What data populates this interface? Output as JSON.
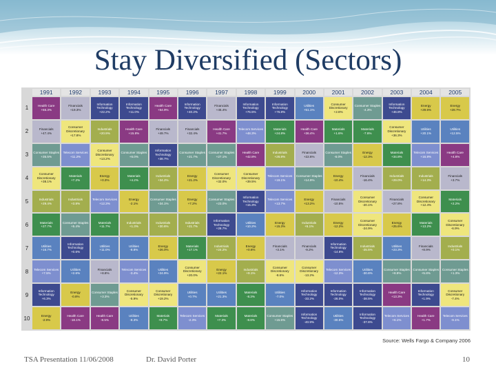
{
  "slide": {
    "title": "Stay Diversified (Sectors)",
    "source": "Source: Wells Fargo & Company 2006",
    "footer_left": "TSA Presentation  11/06/2008",
    "footer_center": "Dr. David Porter",
    "page_number": "10"
  },
  "colors": {
    "Information Technology": "#3d4a8f",
    "Financials": "#b9b8cc",
    "Health Care": "#8a3a83",
    "Energy": "#d8c94a",
    "Consumer Discretionary": "#efe67d",
    "Telecom Services": "#7e8fcf",
    "Utilities": "#5a82bf",
    "Materials": "#3e8f4e",
    "Industrials": "#a3ae4e",
    "Consumer Staples": "#6f9b92",
    "title": "#1f3c64",
    "header_text": "#1f3c6e"
  },
  "years": [
    "1991",
    "1992",
    "1993",
    "1994",
    "1995",
    "1996",
    "1997",
    "1998",
    "1999",
    "2000",
    "2001",
    "2002",
    "2003",
    "2004",
    "2005"
  ],
  "ranks": [
    "1",
    "2",
    "3",
    "4",
    "5",
    "6",
    "7",
    "8",
    "9",
    "10"
  ],
  "grid": [
    [
      [
        "Health Care",
        "+55.3%"
      ],
      [
        "Financials",
        "+19.3%"
      ],
      [
        "Information Technology",
        "+22.2%"
      ],
      [
        "Information Technology",
        "+11.0%"
      ],
      [
        "Health Care",
        "+54.9%"
      ],
      [
        "Information Technology",
        "+40.2%"
      ],
      [
        "Financials",
        "+45.4%"
      ],
      [
        "Information Technology",
        "+76.5%"
      ],
      [
        "Information Technology",
        "+76.8%"
      ],
      [
        "Utilities",
        "+51.1%"
      ],
      [
        "Consumer Discretionary",
        "+2.8%"
      ],
      [
        "Consumer Staples",
        "-4.3%"
      ],
      [
        "Information Technology",
        "+46.8%"
      ],
      [
        "Energy",
        "+29.6%"
      ],
      [
        "Energy",
        "+28.7%"
      ]
    ],
    [
      [
        "Financials",
        "+47.4%"
      ],
      [
        "Consumer Discretionary",
        "+17.8%"
      ],
      [
        "Industrials",
        "+20.9%"
      ],
      [
        "Health Care",
        "+15.8%"
      ],
      [
        "Financials",
        "+49.7%"
      ],
      [
        "Financials",
        "+32.4%"
      ],
      [
        "Health Care",
        "+41.7%"
      ],
      [
        "Telecom Services",
        "+48.3%"
      ],
      [
        "Materials",
        "+24.8%"
      ],
      [
        "Health Care",
        "+36.4%"
      ],
      [
        "Materials",
        "+1.6%"
      ],
      [
        "Materials",
        "-7.6%"
      ],
      [
        "Consumer Discretionary",
        "+36.3%"
      ],
      [
        "Utilities",
        "+20.1%"
      ],
      [
        "Utilities",
        "+12.5%"
      ]
    ],
    [
      [
        "Consumer Staples",
        "+35.5%"
      ],
      [
        "Telecom Services",
        "+11.2%"
      ],
      [
        "Consumer Discretionary",
        "+13.2%"
      ],
      [
        "Consumer Staples",
        "+6.0%"
      ],
      [
        "Information Technology",
        "+38.7%"
      ],
      [
        "Consumer Staples",
        "+21.7%"
      ],
      [
        "Consumer Staples",
        "+27.1%"
      ],
      [
        "Health Care",
        "+42.8%"
      ],
      [
        "Industrials",
        "+26.8%"
      ],
      [
        "Financials",
        "+22.6%"
      ],
      [
        "Consumer Staples",
        "-6.0%"
      ],
      [
        "Energy",
        "-12.3%"
      ],
      [
        "Materials",
        "+34.8%"
      ],
      [
        "Telecom Services",
        "+16.8%"
      ],
      [
        "Health Care",
        "+4.8%"
      ]
    ],
    [
      [
        "Consumer Discretionary",
        "+38.1%"
      ],
      [
        "Materials",
        "+7.2%"
      ],
      [
        "Energy",
        "+0.3%"
      ],
      [
        "Materials",
        "+4.2%"
      ],
      [
        "Industrials",
        "+34.2%"
      ],
      [
        "Energy",
        "+21.2%"
      ],
      [
        "Consumer Discretionary",
        "+32.0%"
      ],
      [
        "Consumer Discretionary",
        "+39.5%"
      ],
      [
        "Telecom Services",
        "+19.1%"
      ],
      [
        "Consumer Staples",
        "+14.9%"
      ],
      [
        "Energy",
        "-10.4%"
      ],
      [
        "Financials",
        "-16.4%"
      ],
      [
        "Industrials",
        "+29.0%"
      ],
      [
        "Industrials",
        "+14.3%"
      ],
      [
        "Financials",
        "+3.7%"
      ]
    ],
    [
      [
        "Industrials",
        "+29.4%"
      ],
      [
        "Industrials",
        "+3.8%"
      ],
      [
        "Telecom Services",
        "+12.3%"
      ],
      [
        "Energy",
        "-2.1%"
      ],
      [
        "Consumer Staples",
        "+34.1%"
      ],
      [
        "Energy",
        "+7.2%"
      ],
      [
        "Consumer Staples",
        "+23.0%"
      ],
      [
        "Information Technology",
        "+15.3%"
      ],
      [
        "Telecom Services",
        "+13.7%"
      ],
      [
        "Energy",
        "+13.2%"
      ],
      [
        "Financials",
        "-10.5%"
      ],
      [
        "Consumer Discretionary",
        "-20.1%"
      ],
      [
        "Financials",
        "+27.8%"
      ],
      [
        "Consumer Discretionary",
        "+12.4%"
      ],
      [
        "Materials",
        "+2.2%"
      ]
    ],
    [
      [
        "Materials",
        "+27.7%"
      ],
      [
        "Consumer Staples",
        "+5.4%"
      ],
      [
        "Materials",
        "+11.7%"
      ],
      [
        "Industrials",
        "+1.3%"
      ],
      [
        "Industrials",
        "+30.6%"
      ],
      [
        "Industrials",
        "+21.7%"
      ],
      [
        "Information Technology",
        "+28.7%"
      ],
      [
        "Utilities",
        "+10.2%"
      ],
      [
        "Energy",
        "+15.3%"
      ],
      [
        "Industrials",
        "+5.1%"
      ],
      [
        "Energy",
        "-12.2%"
      ],
      [
        "Consumer Discretionary",
        "-24.9%"
      ],
      [
        "Energy",
        "+25.6%"
      ],
      [
        "Materials",
        "+13.2%"
      ],
      [
        "Consumer Discretionary",
        "-6.9%"
      ]
    ],
    [
      [
        "Utilities",
        "+16.7%"
      ],
      [
        "Information Technology",
        "+0.6%"
      ],
      [
        "Utilities",
        "+11.0%"
      ],
      [
        "Utilities",
        "-8.8%"
      ],
      [
        "Energy",
        "+26.0%"
      ],
      [
        "Materials",
        "+17.1%"
      ],
      [
        "Industrials",
        "+24.2%"
      ],
      [
        "Energy",
        "+0.6%"
      ],
      [
        "Financials",
        "+3.1%"
      ],
      [
        "Financials",
        "-9.2%"
      ],
      [
        "Information Technology",
        "-14.6%"
      ],
      [
        "Industrials",
        "-25.5%"
      ],
      [
        "Utilities",
        "+23.3%"
      ],
      [
        "Financials",
        "+8.9%"
      ],
      [
        "Industrials",
        "+0.1%"
      ]
    ],
    [
      [
        "Telecom Services",
        "+7.5%"
      ],
      [
        "Utilities",
        "+2.6%"
      ],
      [
        "Financials",
        "+8.8%"
      ],
      [
        "Telecom Services",
        "-3.4%"
      ],
      [
        "Utilities",
        "+24.9%"
      ],
      [
        "Consumer Discretionary",
        "+20.0%"
      ],
      [
        "Energy",
        "+22.1%"
      ],
      [
        "Industrials",
        "+9.1%"
      ],
      [
        "Consumer Discretionary",
        "-8.6%"
      ],
      [
        "Consumer Discretionary",
        "-13.2%"
      ],
      [
        "Telecom Services",
        "-12.3%"
      ],
      [
        "Utilities",
        "-30.6%"
      ],
      [
        "Consumer Staples",
        "+8.9%"
      ],
      [
        "Consumer Staples",
        "+5.8%"
      ],
      [
        "Consumer Staples",
        "+1.3%"
      ]
    ],
    [
      [
        "Information Technology",
        "+6.3%"
      ],
      [
        "Energy",
        "-0.8%"
      ],
      [
        "Consumer Staples",
        "+3.3%"
      ],
      [
        "Consumer Discretionary",
        "-5.9%"
      ],
      [
        "Consumer Discretionary",
        "+19.2%"
      ],
      [
        "Utilities",
        "+0.7%"
      ],
      [
        "Utilities",
        "+21.3%"
      ],
      [
        "Materials",
        "-8.3%"
      ],
      [
        "Utilities",
        "-7.0%"
      ],
      [
        "Information Technology",
        "-33.2%"
      ],
      [
        "Information Technology",
        "-26.0%"
      ],
      [
        "Information Technology",
        "-38.5%"
      ],
      [
        "Health Care",
        "+13.3%"
      ],
      [
        "Information Technology",
        "+1.9%"
      ],
      [
        "Consumer Discretionary",
        "-7.4%"
      ]
    ],
    [
      [
        "Energy",
        "-2.9%"
      ],
      [
        "Health Care",
        "-18.1%"
      ],
      [
        "Health Care",
        "-8.5%"
      ],
      [
        "Utilities",
        "-8.3%"
      ],
      [
        "Materials",
        "+8.7%"
      ],
      [
        "Telecom Services",
        "-2.3%"
      ],
      [
        "Materials",
        "+7.3%"
      ],
      [
        "Materials",
        "-8.8%"
      ],
      [
        "Consumer Staples",
        "+15.5%"
      ],
      [
        "Information Technology",
        "-40.9%"
      ],
      [
        "Utilities",
        "-30.5%"
      ],
      [
        "Information Technology",
        "-37.6%"
      ],
      [
        "Telecom Services",
        "+6.1%"
      ],
      [
        "Health Care",
        "+1.7%"
      ],
      [
        "Telecom Services",
        "-9.1%"
      ]
    ]
  ]
}
